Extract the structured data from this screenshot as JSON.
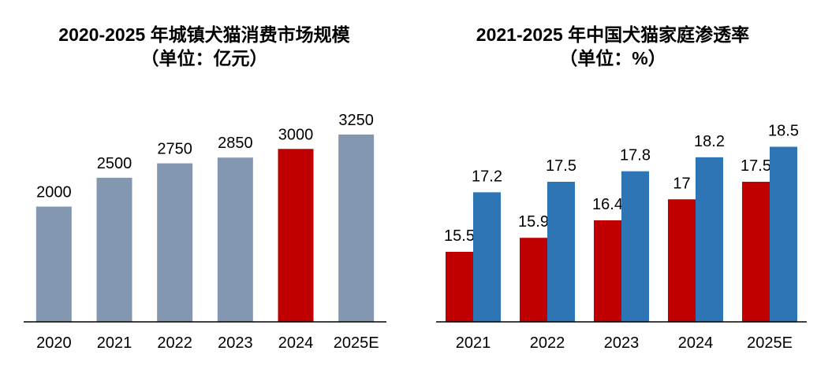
{
  "chart_data": [
    {
      "type": "bar",
      "title": "2020-2025 年城镇犬猫消费市场规模",
      "subtitle": "（单位：亿元）",
      "categories": [
        "2020",
        "2021",
        "2022",
        "2023",
        "2024",
        "2025E"
      ],
      "values": [
        2000,
        2500,
        2750,
        2850,
        3000,
        3250
      ],
      "highlight_index": 4,
      "colors": {
        "default": "#8497b0",
        "highlight": "#c00000"
      },
      "ylim": [
        0,
        4000
      ],
      "grid": false,
      "xlabel": "",
      "ylabel": ""
    },
    {
      "type": "bar",
      "title": "2021-2025 年中国犬猫家庭渗透率",
      "subtitle": "（单位：%）",
      "categories": [
        "2021",
        "2022",
        "2023",
        "2024",
        "2025E"
      ],
      "series": [
        {
          "values": [
            15.5,
            15.9,
            16.4,
            17,
            17.5
          ],
          "color": "#c00000"
        },
        {
          "values": [
            17.2,
            17.5,
            17.8,
            18.2,
            18.5
          ],
          "color": "#2e75b6"
        }
      ],
      "ylim": [
        13.5,
        19.5
      ],
      "grid": false,
      "xlabel": "",
      "ylabel": ""
    }
  ]
}
